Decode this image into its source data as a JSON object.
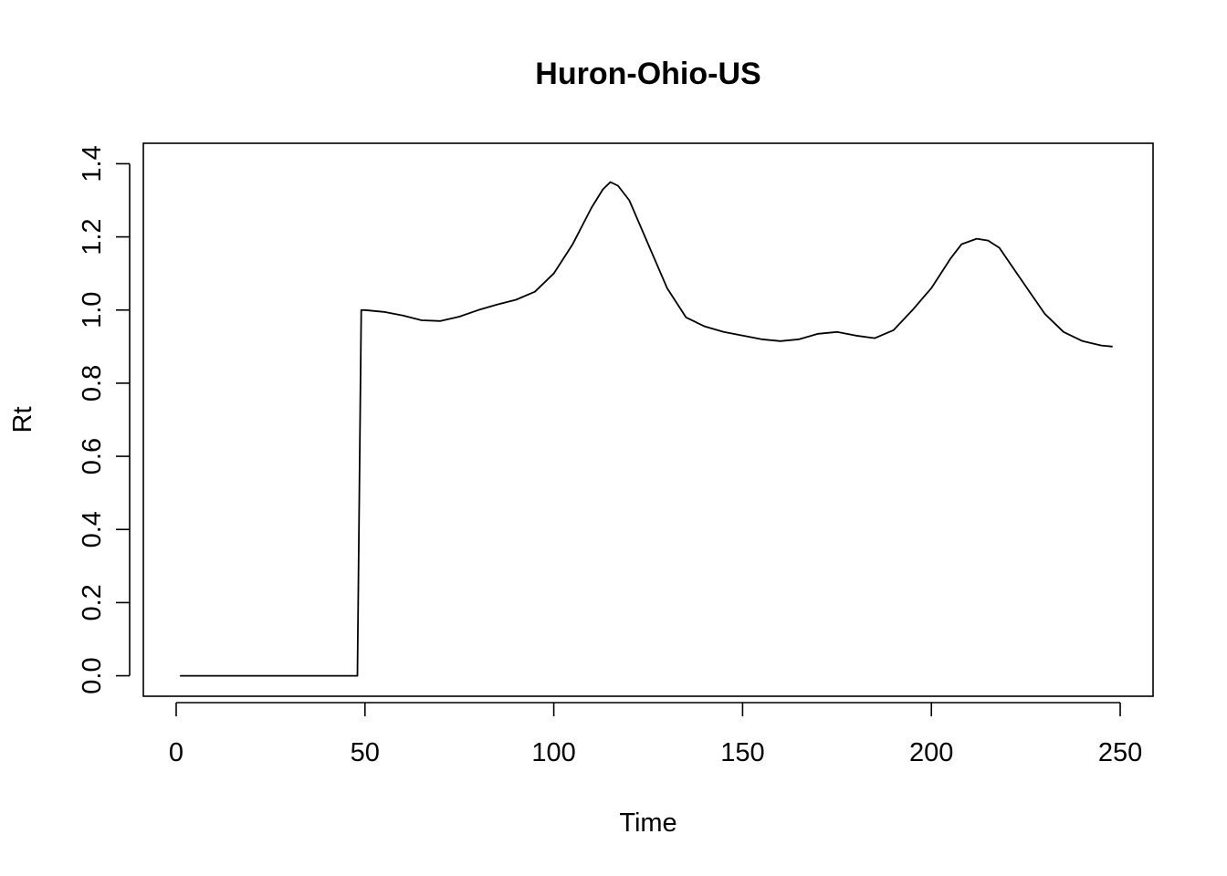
{
  "chart_data": {
    "type": "line",
    "title": "Huron-Ohio-US",
    "xlabel": "Time",
    "ylabel": "Rt",
    "xlim": [
      -8.7,
      258.7
    ],
    "ylim": [
      -0.056,
      1.456
    ],
    "x_ticks": [
      0,
      50,
      100,
      150,
      200,
      250
    ],
    "y_ticks": [
      0.0,
      0.2,
      0.4,
      0.6,
      0.8,
      1.0,
      1.2,
      1.4
    ],
    "x_tick_labels": [
      "0",
      "50",
      "100",
      "150",
      "200",
      "250"
    ],
    "y_tick_labels": [
      "0.0",
      "0.2",
      "0.4",
      "0.6",
      "0.8",
      "1.0",
      "1.2",
      "1.4"
    ],
    "grid": false,
    "series": [
      {
        "color": "#000000",
        "x": [
          1,
          10,
          20,
          30,
          40,
          48,
          49,
          50,
          55,
          60,
          65,
          70,
          75,
          80,
          85,
          90,
          95,
          100,
          105,
          110,
          113,
          115,
          117,
          120,
          125,
          130,
          135,
          140,
          145,
          150,
          155,
          160,
          165,
          170,
          175,
          180,
          185,
          190,
          195,
          200,
          205,
          208,
          212,
          215,
          218,
          222,
          226,
          230,
          235,
          240,
          245,
          248
        ],
        "y": [
          0.0,
          0.0,
          0.0,
          0.0,
          0.0,
          0.0,
          1.0,
          1.0,
          0.995,
          0.985,
          0.972,
          0.97,
          0.982,
          1.0,
          1.015,
          1.028,
          1.05,
          1.1,
          1.18,
          1.28,
          1.33,
          1.35,
          1.34,
          1.3,
          1.18,
          1.06,
          0.98,
          0.955,
          0.94,
          0.93,
          0.92,
          0.915,
          0.92,
          0.935,
          0.94,
          0.93,
          0.923,
          0.945,
          1.0,
          1.06,
          1.14,
          1.18,
          1.195,
          1.19,
          1.17,
          1.11,
          1.05,
          0.99,
          0.94,
          0.915,
          0.903,
          0.9
        ]
      }
    ]
  }
}
